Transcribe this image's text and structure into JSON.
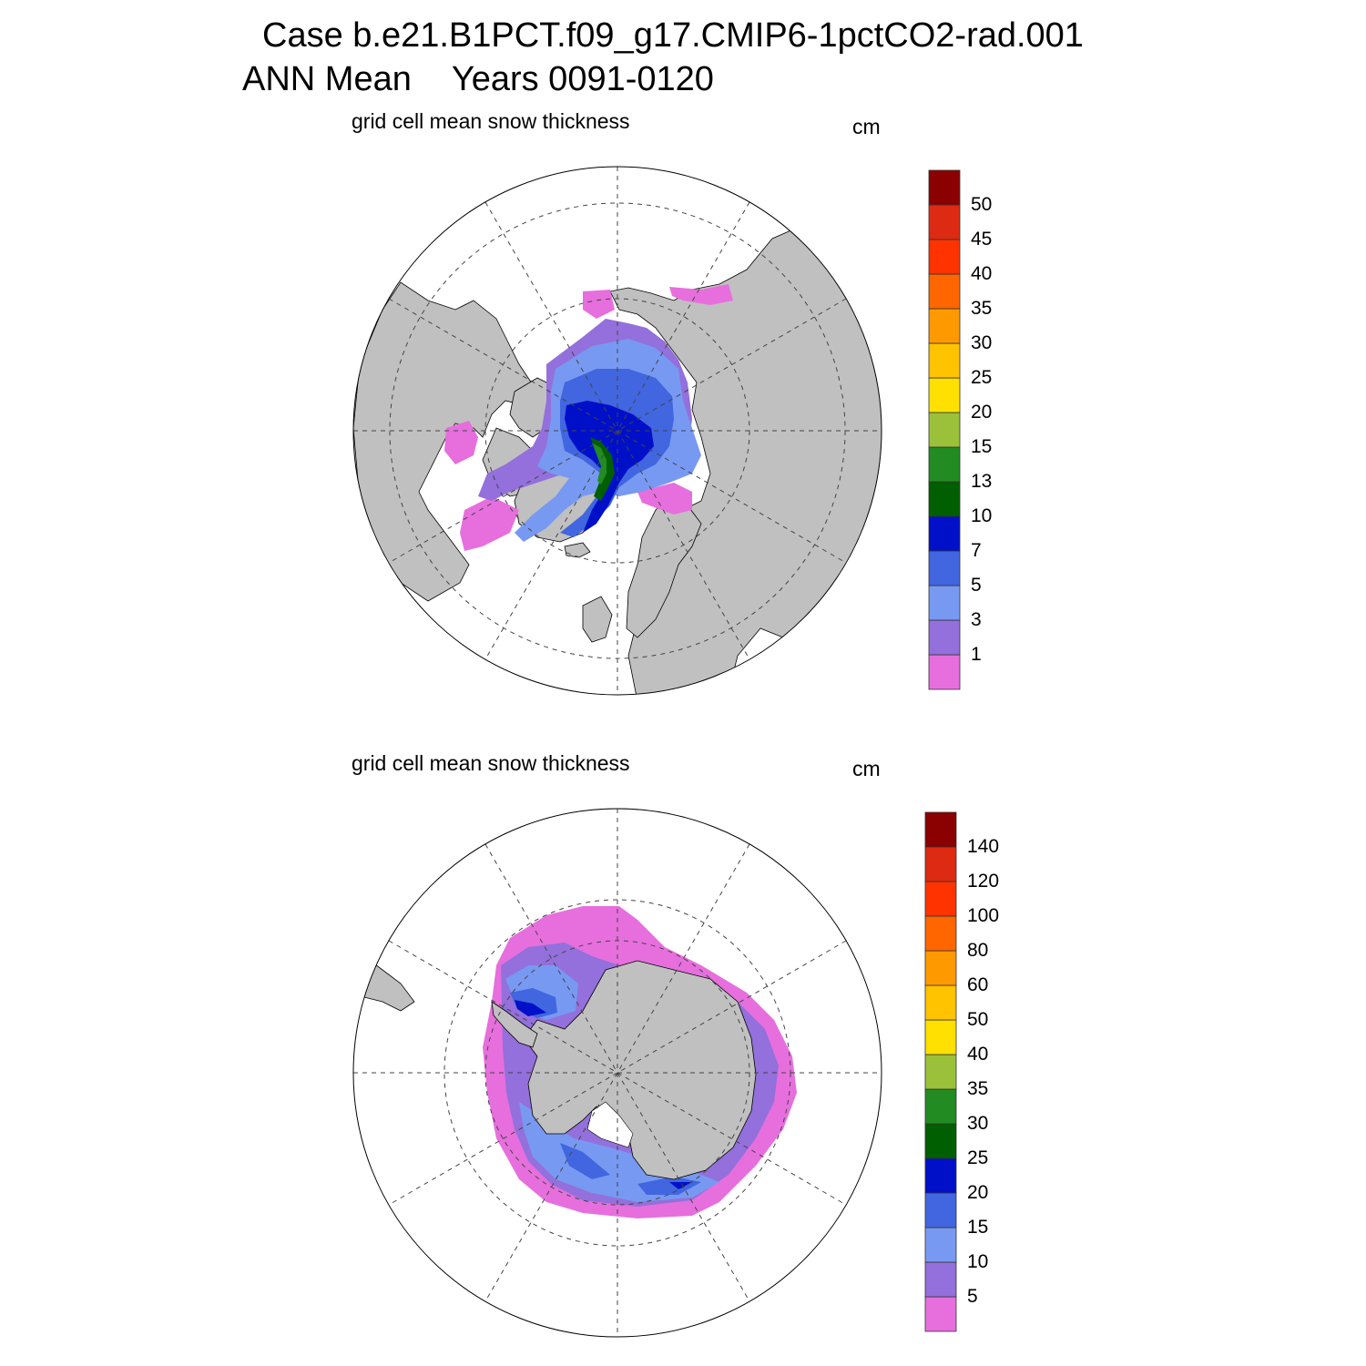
{
  "header": {
    "case_title": "Case b.e21.B1PCT.f09_g17.CMIP6-1pctCO2-rad.001",
    "season": "ANN Mean",
    "years": "Years 0091-0120"
  },
  "colors": {
    "land": "#c0c0c0",
    "palette": [
      "#e66fdd",
      "#9370db",
      "#7799f2",
      "#4166e0",
      "#0010c8",
      "#005f00",
      "#228b22",
      "#9bc03a",
      "#ffe000",
      "#ffc300",
      "#ff9900",
      "#ff6600",
      "#ff3300",
      "#dd2a12",
      "#8b0000"
    ]
  },
  "panels": [
    {
      "id": "north",
      "subtitle": "grid cell mean snow thickness",
      "units": "cm",
      "colorbar_levels": [
        "1",
        "3",
        "5",
        "7",
        "10",
        "13",
        "15",
        "20",
        "25",
        "30",
        "35",
        "40",
        "45",
        "50"
      ]
    },
    {
      "id": "south",
      "subtitle": "grid cell mean snow thickness",
      "units": "cm",
      "colorbar_levels": [
        "5",
        "10",
        "15",
        "20",
        "25",
        "30",
        "35",
        "40",
        "50",
        "60",
        "80",
        "100",
        "120",
        "140"
      ]
    }
  ]
}
